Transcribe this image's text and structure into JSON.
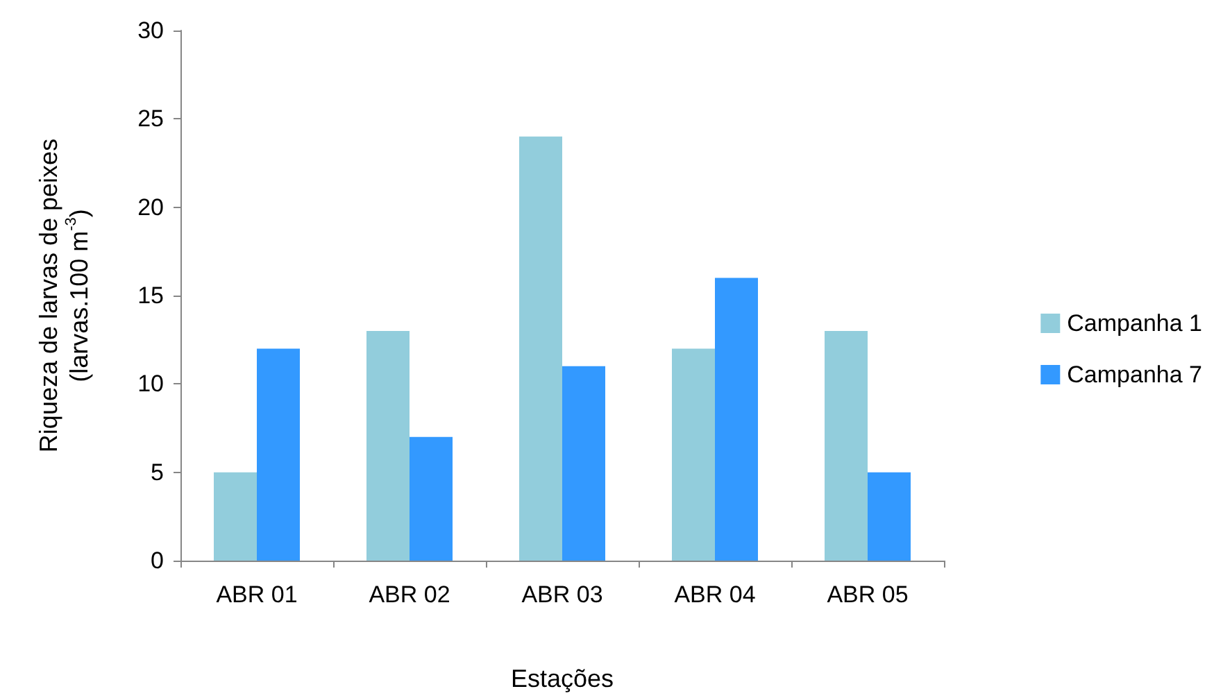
{
  "chart_data": {
    "type": "bar",
    "xlabel": "Estações",
    "ylabel": "Riqueza de larvas de peixes\n(larvas.100 m$^{-3}$)",
    "categories": [
      "ABR 01",
      "ABR 02",
      "ABR 03",
      "ABR 04",
      "ABR 05"
    ],
    "series": [
      {
        "name": "Campanha 1",
        "color": "#92cddc",
        "values": [
          5,
          13,
          24,
          12,
          13
        ]
      },
      {
        "name": "Campanha 7",
        "color": "#3399ff",
        "values": [
          12,
          7,
          11,
          16,
          5
        ]
      }
    ],
    "ylim": [
      0,
      30
    ],
    "yticks": [
      0,
      5,
      10,
      15,
      20,
      25,
      30
    ],
    "grid": false,
    "legend": "right"
  }
}
